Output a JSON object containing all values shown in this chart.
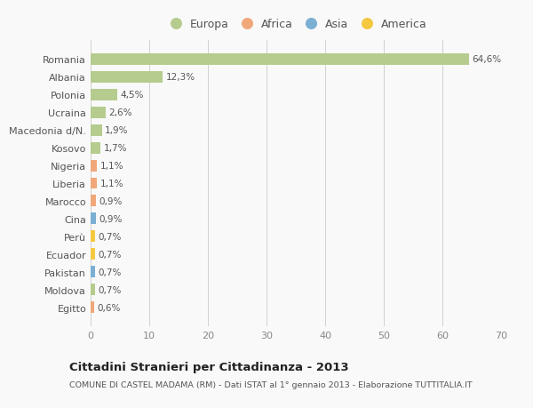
{
  "countries": [
    "Romania",
    "Albania",
    "Polonia",
    "Ucraina",
    "Macedonia d/N.",
    "Kosovo",
    "Nigeria",
    "Liberia",
    "Marocco",
    "Cina",
    "Perù",
    "Ecuador",
    "Pakistan",
    "Moldova",
    "Egitto"
  ],
  "values": [
    64.6,
    12.3,
    4.5,
    2.6,
    1.9,
    1.7,
    1.1,
    1.1,
    0.9,
    0.9,
    0.7,
    0.7,
    0.7,
    0.7,
    0.6
  ],
  "labels": [
    "64,6%",
    "12,3%",
    "4,5%",
    "2,6%",
    "1,9%",
    "1,7%",
    "1,1%",
    "1,1%",
    "0,9%",
    "0,9%",
    "0,7%",
    "0,7%",
    "0,7%",
    "0,7%",
    "0,6%"
  ],
  "continents": [
    "Europa",
    "Europa",
    "Europa",
    "Europa",
    "Europa",
    "Europa",
    "Africa",
    "Africa",
    "Africa",
    "Asia",
    "America",
    "America",
    "Asia",
    "Europa",
    "Africa"
  ],
  "colors": {
    "Europa": "#b5cc8e",
    "Africa": "#f0a87a",
    "Asia": "#7bafd4",
    "America": "#f5c842"
  },
  "legend_items": [
    "Europa",
    "Africa",
    "Asia",
    "America"
  ],
  "legend_colors": [
    "#b5cc8e",
    "#f0a87a",
    "#7bafd4",
    "#f5c842"
  ],
  "title": "Cittadini Stranieri per Cittadinanza - 2013",
  "subtitle": "COMUNE DI CASTEL MADAMA (RM) - Dati ISTAT al 1° gennaio 2013 - Elaborazione TUTTITALIA.IT",
  "xlim": [
    0,
    70
  ],
  "xticks": [
    0,
    10,
    20,
    30,
    40,
    50,
    60,
    70
  ],
  "bg_color": "#f9f9f9"
}
